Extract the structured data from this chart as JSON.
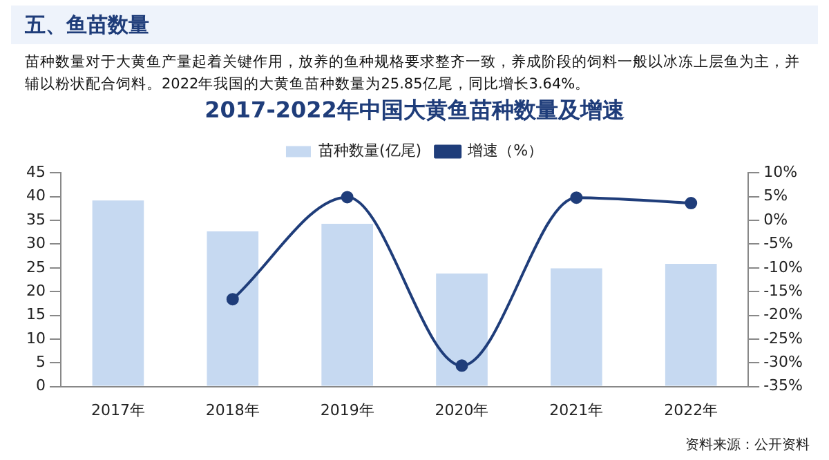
{
  "chart_data": {
    "type": "bar",
    "title": "2017-2022年中国大黄鱼苗种数量及增速",
    "annotations": [
      "五、鱼苗数量",
      "苗种数量对于大黄鱼产量起着关键作用，放养的鱼种规格要求整齐一致，养成阶段的饲料一般以冰冻上层鱼为主，并辅以粉状配合饲料。2022年我国的大黄鱼苗种数量为25.85亿尾，同比增长3.64%。",
      "资料来源：公开资料"
    ],
    "categories": [
      "2017年",
      "2018年",
      "2019年",
      "2020年",
      "2021年",
      "2022年"
    ],
    "series": [
      {
        "name": "苗种数量(亿尾)",
        "color": "#c6d9f1",
        "values": [
          39.2,
          32.7,
          34.3,
          23.8,
          24.9,
          25.85
        ]
      },
      {
        "name": "增速（%）",
        "type": "line",
        "axis": "y2",
        "color": "#1f3d7a",
        "values": [
          null,
          -16.6,
          4.9,
          -30.6,
          4.8,
          3.64
        ]
      }
    ],
    "ylim": [
      0,
      45
    ],
    "yticks": [
      0,
      5,
      10,
      15,
      20,
      25,
      30,
      35,
      40,
      45
    ],
    "y2lim": [
      -35,
      10
    ],
    "y2ticks": [
      {
        "value": -35,
        "label": "-35%"
      },
      {
        "value": -30,
        "label": "-30%"
      },
      {
        "value": -25,
        "label": "-25%"
      },
      {
        "value": -20,
        "label": "-20%"
      },
      {
        "value": -15,
        "label": "-15%"
      },
      {
        "value": -10,
        "label": "-10%"
      },
      {
        "value": -5,
        "label": "-5%"
      },
      {
        "value": 0,
        "label": "0%"
      },
      {
        "value": 5,
        "label": "5%"
      },
      {
        "value": 10,
        "label": "10%"
      }
    ],
    "grid": false,
    "legend": "top",
    "marker": "circle",
    "line_style": "solid"
  }
}
